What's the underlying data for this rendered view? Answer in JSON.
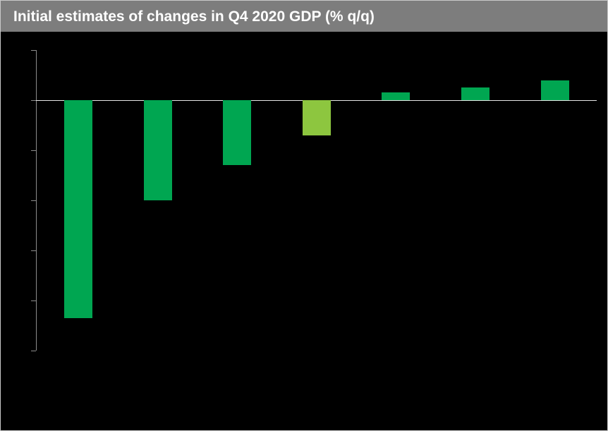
{
  "header": {
    "title": "Initial estimates of changes in Q4 2020 GDP (% q/q)",
    "background": "#7d7d7d",
    "text_color": "#ffffff"
  },
  "chart_data": {
    "type": "bar",
    "title": "Initial estimates of changes in Q4 2020 GDP (% q/q)",
    "xlabel": "",
    "ylabel": "",
    "categories": [
      "",
      "",
      "",
      "",
      "",
      "",
      ""
    ],
    "values": [
      -8.7,
      -4.0,
      -2.6,
      -1.4,
      0.3,
      0.5,
      0.8
    ],
    "bar_colors": [
      "#00a651",
      "#00a651",
      "#00a651",
      "#8dc63f",
      "#00a651",
      "#00a651",
      "#00a651"
    ],
    "ylim": [
      -10,
      2
    ],
    "ytick_step": 2,
    "yticks": [
      2,
      0,
      -2,
      -4,
      -6,
      -8,
      -10
    ],
    "tick_labels_visible": false,
    "grid": false,
    "legend": "none",
    "background_color": "#000000",
    "axis_color": "#8c8c8c",
    "zero_line_color": "#e6e6e6"
  }
}
